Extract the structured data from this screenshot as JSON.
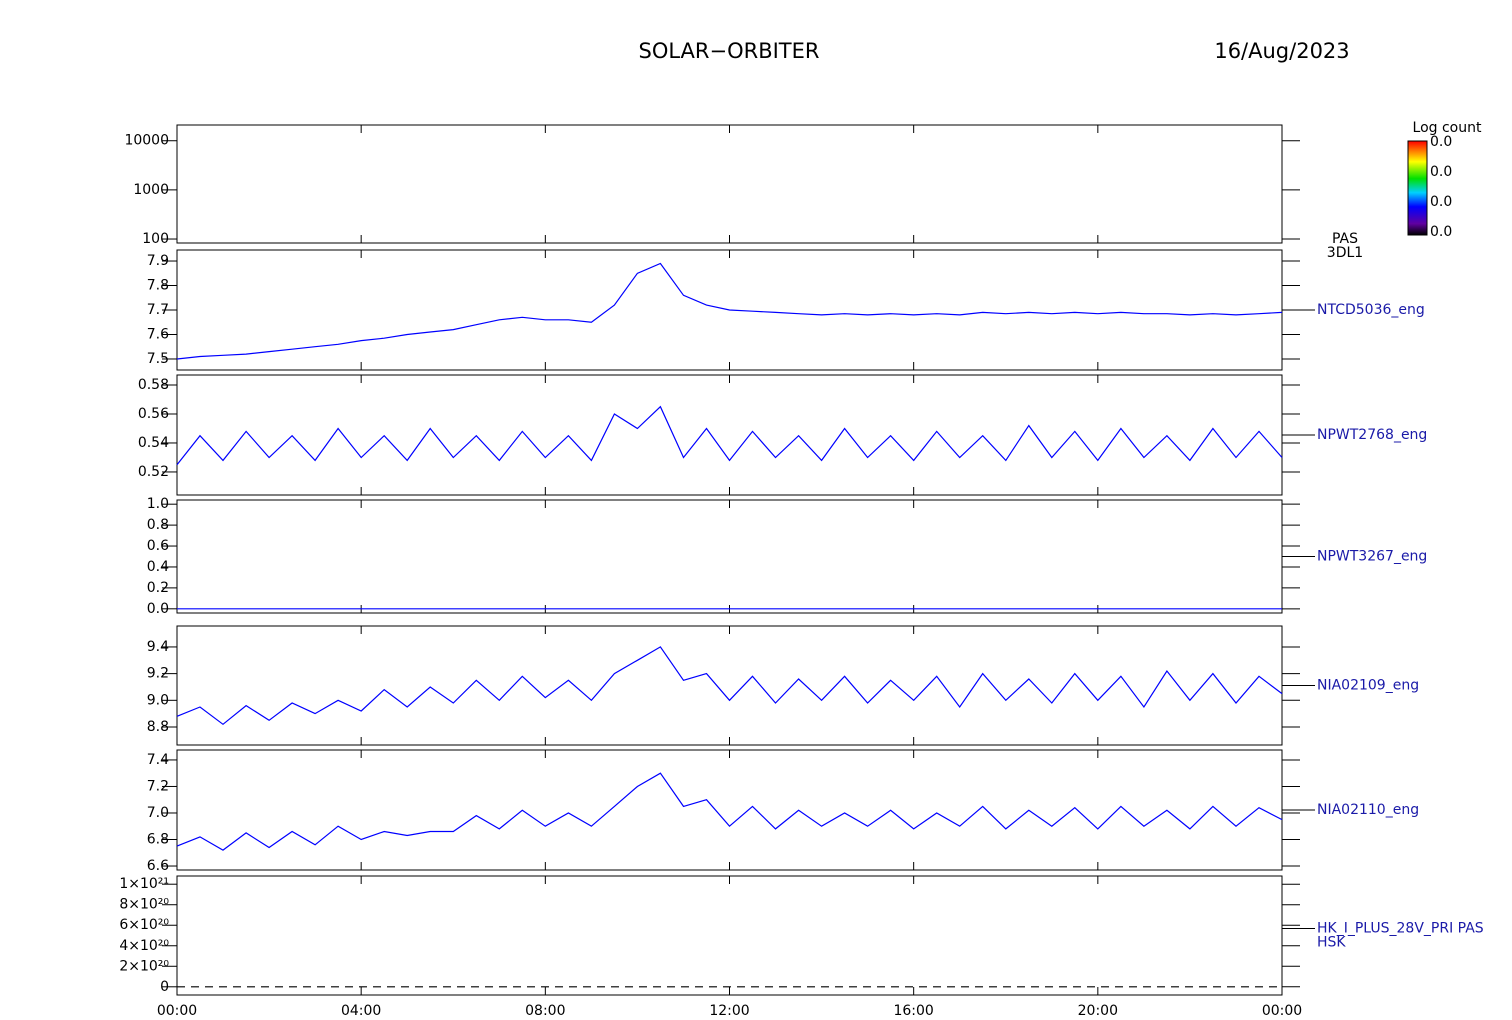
{
  "header": {
    "title": "SOLAR−ORBITER",
    "date": "16/Aug/2023"
  },
  "chart_data": [
    {
      "type": "spectrogram",
      "label_lines": [
        "PAS",
        "3DL1"
      ],
      "ylog": true,
      "ylim": [
        83,
        20900
      ],
      "yticks": [
        100,
        1000,
        10000
      ],
      "colorbar": {
        "title": "Log count",
        "labels": [
          "0.0",
          "0.0",
          "0.0",
          "0.0"
        ]
      }
    },
    {
      "type": "line",
      "label_lines": [
        "NTCD5036_eng"
      ],
      "color": "#0000ff",
      "ylim": [
        7.455,
        7.945
      ],
      "yticks": [
        7.5,
        7.6,
        7.7,
        7.8,
        7.9
      ],
      "x": [
        0,
        0.5,
        1,
        1.5,
        2,
        2.5,
        3,
        3.5,
        4,
        4.5,
        5,
        5.5,
        6,
        6.5,
        7,
        7.5,
        8,
        8.5,
        9,
        9.5,
        10,
        10.5,
        11,
        11.5,
        12,
        12.5,
        13,
        13.5,
        14,
        14.5,
        15,
        15.5,
        16,
        16.5,
        17,
        17.5,
        18,
        18.5,
        19,
        19.5,
        20,
        20.5,
        21,
        21.5,
        22,
        22.5,
        23,
        23.5,
        24
      ],
      "values": [
        7.5,
        7.51,
        7.515,
        7.52,
        7.53,
        7.54,
        7.55,
        7.56,
        7.575,
        7.585,
        7.6,
        7.61,
        7.62,
        7.64,
        7.66,
        7.67,
        7.66,
        7.66,
        7.65,
        7.72,
        7.85,
        7.89,
        7.76,
        7.72,
        7.7,
        7.695,
        7.69,
        7.685,
        7.68,
        7.685,
        7.68,
        7.685,
        7.68,
        7.685,
        7.68,
        7.69,
        7.685,
        7.69,
        7.685,
        7.69,
        7.685,
        7.69,
        7.685,
        7.685,
        7.68,
        7.685,
        7.68,
        7.685,
        7.69
      ]
    },
    {
      "type": "line",
      "label_lines": [
        "NPWT2768_eng"
      ],
      "color": "#0000ff",
      "ylim": [
        0.5041,
        0.5869
      ],
      "yticks": [
        0.52,
        0.54,
        0.56,
        0.58
      ],
      "x": [
        0,
        0.5,
        1,
        1.5,
        2,
        2.5,
        3,
        3.5,
        4,
        4.5,
        5,
        5.5,
        6,
        6.5,
        7,
        7.5,
        8,
        8.5,
        9,
        9.5,
        10,
        10.5,
        11,
        11.5,
        12,
        12.5,
        13,
        13.5,
        14,
        14.5,
        15,
        15.5,
        16,
        16.5,
        17,
        17.5,
        18,
        18.5,
        19,
        19.5,
        20,
        20.5,
        21,
        21.5,
        22,
        22.5,
        23,
        23.5,
        24
      ],
      "values": [
        0.525,
        0.545,
        0.528,
        0.548,
        0.53,
        0.545,
        0.528,
        0.55,
        0.53,
        0.545,
        0.528,
        0.55,
        0.53,
        0.545,
        0.528,
        0.548,
        0.53,
        0.545,
        0.528,
        0.56,
        0.55,
        0.565,
        0.53,
        0.55,
        0.528,
        0.548,
        0.53,
        0.545,
        0.528,
        0.55,
        0.53,
        0.545,
        0.528,
        0.548,
        0.53,
        0.545,
        0.528,
        0.552,
        0.53,
        0.548,
        0.528,
        0.55,
        0.53,
        0.545,
        0.528,
        0.55,
        0.53,
        0.548,
        0.53
      ]
    },
    {
      "type": "line",
      "label_lines": [
        "NPWT3267_eng"
      ],
      "color": "#0000ff",
      "ylim": [
        -0.04,
        1.04
      ],
      "yticks": [
        {
          "value": 0,
          "label": "0.0"
        },
        0.2,
        0.4,
        0.6,
        0.8,
        {
          "value": 1,
          "label": "1.0"
        }
      ],
      "x": [
        0,
        24
      ],
      "values": [
        0,
        0
      ]
    },
    {
      "type": "line",
      "label_lines": [
        "NIA02109_eng"
      ],
      "color": "#0000ff",
      "ylim": [
        8.665,
        9.557
      ],
      "yticks": [
        8.8,
        {
          "value": 9,
          "label": "9.0"
        },
        9.2,
        9.4
      ],
      "x": [
        0,
        0.5,
        1,
        1.5,
        2,
        2.5,
        3,
        3.5,
        4,
        4.5,
        5,
        5.5,
        6,
        6.5,
        7,
        7.5,
        8,
        8.5,
        9,
        9.5,
        10,
        10.5,
        11,
        11.5,
        12,
        12.5,
        13,
        13.5,
        14,
        14.5,
        15,
        15.5,
        16,
        16.5,
        17,
        17.5,
        18,
        18.5,
        19,
        19.5,
        20,
        20.5,
        21,
        21.5,
        22,
        22.5,
        23,
        23.5,
        24
      ],
      "values": [
        8.88,
        8.95,
        8.82,
        8.96,
        8.85,
        8.98,
        8.9,
        9.0,
        8.92,
        9.08,
        8.95,
        9.1,
        8.98,
        9.15,
        9.0,
        9.18,
        9.02,
        9.15,
        9.0,
        9.2,
        9.3,
        9.4,
        9.15,
        9.2,
        9.0,
        9.18,
        8.98,
        9.16,
        9.0,
        9.18,
        8.98,
        9.15,
        9.0,
        9.18,
        8.95,
        9.2,
        9.0,
        9.16,
        8.98,
        9.2,
        9.0,
        9.18,
        8.95,
        9.22,
        9.0,
        9.2,
        8.98,
        9.18,
        9.05
      ]
    },
    {
      "type": "line",
      "label_lines": [
        "NIA02110_eng"
      ],
      "color": "#0000ff",
      "ylim": [
        6.57,
        7.475
      ],
      "yticks": [
        6.6,
        6.8,
        {
          "value": 7,
          "label": "7.0"
        },
        7.2,
        7.4
      ],
      "x": [
        0,
        0.5,
        1,
        1.5,
        2,
        2.5,
        3,
        3.5,
        4,
        4.5,
        5,
        5.5,
        6,
        6.5,
        7,
        7.5,
        8,
        8.5,
        9,
        9.5,
        10,
        10.5,
        11,
        11.5,
        12,
        12.5,
        13,
        13.5,
        14,
        14.5,
        15,
        15.5,
        16,
        16.5,
        17,
        17.5,
        18,
        18.5,
        19,
        19.5,
        20,
        20.5,
        21,
        21.5,
        22,
        22.5,
        23,
        23.5,
        24
      ],
      "values": [
        6.75,
        6.82,
        6.72,
        6.85,
        6.74,
        6.86,
        6.76,
        6.9,
        6.8,
        6.86,
        6.83,
        6.86,
        6.86,
        6.98,
        6.88,
        7.02,
        6.9,
        7.0,
        6.9,
        7.05,
        7.2,
        7.3,
        7.05,
        7.1,
        6.9,
        7.05,
        6.88,
        7.02,
        6.9,
        7.0,
        6.9,
        7.02,
        6.88,
        7.0,
        6.9,
        7.05,
        6.88,
        7.02,
        6.9,
        7.04,
        6.88,
        7.05,
        6.9,
        7.02,
        6.88,
        7.05,
        6.9,
        7.04,
        6.95
      ]
    },
    {
      "type": "line",
      "label_lines": [
        "HK_I_PLUS_28V_PRI PAS",
        "HSK"
      ],
      "color": "#000000",
      "dashed": true,
      "ylim": [
        -8e+19,
        1.08e+21
      ],
      "yticks": [
        0,
        {
          "value": 2e+20,
          "label": "2×10²⁰"
        },
        {
          "value": 4e+20,
          "label": "4×10²⁰"
        },
        {
          "value": 6e+20,
          "label": "6×10²⁰"
        },
        {
          "value": 8e+20,
          "label": "8×10²⁰"
        },
        {
          "value": 1e+21,
          "label": "1×10²¹"
        }
      ],
      "x": [
        0,
        24
      ],
      "values": [
        0,
        0
      ],
      "xlim": [
        0,
        24
      ],
      "xticks": [
        {
          "value": 0,
          "label": "00:00"
        },
        {
          "value": 4,
          "label": "04:00"
        },
        {
          "value": 8,
          "label": "08:00"
        },
        {
          "value": 12,
          "label": "12:00"
        },
        {
          "value": 16,
          "label": "16:00"
        },
        {
          "value": 20,
          "label": "20:00"
        },
        {
          "value": 24,
          "label": "00:00"
        }
      ]
    }
  ]
}
